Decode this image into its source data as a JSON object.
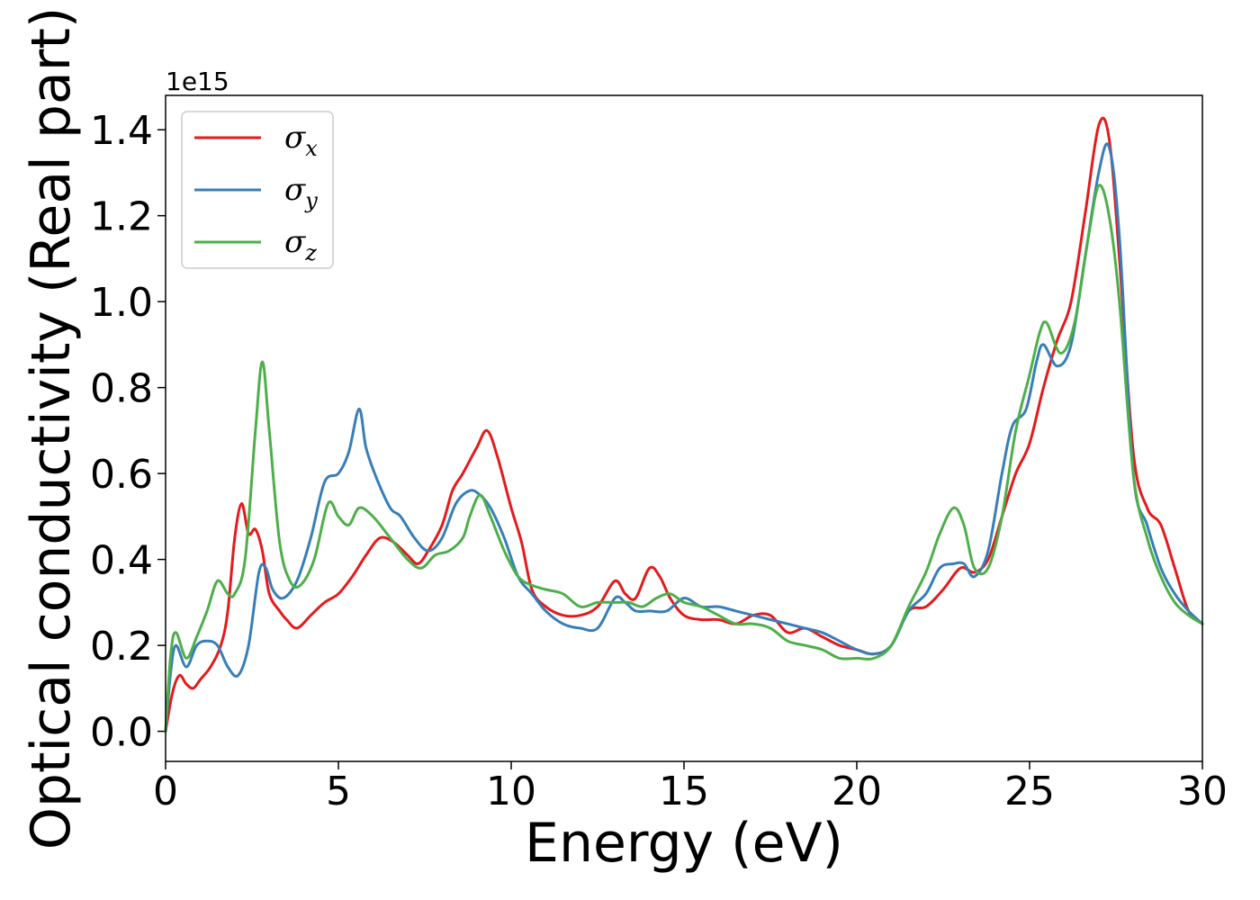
{
  "chart_data": {
    "type": "line",
    "xlabel": "Energy (eV)",
    "ylabel": "Optical conductivity (Real part)",
    "y_offset_text": "1e15",
    "xlim": [
      0,
      30
    ],
    "ylim": [
      -0.07,
      1.48
    ],
    "x_ticks": [
      0,
      5,
      10,
      15,
      20,
      25,
      30
    ],
    "x_tick_labels": [
      "0",
      "5",
      "10",
      "15",
      "20",
      "25",
      "30"
    ],
    "y_ticks": [
      0.0,
      0.2,
      0.4,
      0.6,
      0.8,
      1.0,
      1.2,
      1.4
    ],
    "y_tick_labels": [
      "0.0",
      "0.2",
      "0.4",
      "0.6",
      "0.8",
      "1.0",
      "1.2",
      "1.4"
    ],
    "grid": false,
    "legend_position": "top-left",
    "series": [
      {
        "name": "σx",
        "name_base": "σ",
        "name_sub": "x",
        "color": "#e41a1c",
        "points": [
          [
            0,
            0
          ],
          [
            0.2,
            0.09
          ],
          [
            0.4,
            0.13
          ],
          [
            0.6,
            0.11
          ],
          [
            0.8,
            0.1
          ],
          [
            1,
            0.12
          ],
          [
            1.3,
            0.15
          ],
          [
            1.6,
            0.2
          ],
          [
            1.8,
            0.28
          ],
          [
            2.0,
            0.45
          ],
          [
            2.2,
            0.53
          ],
          [
            2.4,
            0.46
          ],
          [
            2.6,
            0.47
          ],
          [
            2.8,
            0.42
          ],
          [
            3.0,
            0.32
          ],
          [
            3.3,
            0.28
          ],
          [
            3.5,
            0.26
          ],
          [
            3.8,
            0.24
          ],
          [
            4.2,
            0.27
          ],
          [
            4.6,
            0.3
          ],
          [
            5.0,
            0.32
          ],
          [
            5.4,
            0.36
          ],
          [
            5.8,
            0.41
          ],
          [
            6.2,
            0.45
          ],
          [
            6.6,
            0.44
          ],
          [
            7.0,
            0.41
          ],
          [
            7.3,
            0.39
          ],
          [
            7.6,
            0.42
          ],
          [
            8.0,
            0.48
          ],
          [
            8.3,
            0.56
          ],
          [
            8.6,
            0.6
          ],
          [
            9.0,
            0.66
          ],
          [
            9.3,
            0.7
          ],
          [
            9.6,
            0.64
          ],
          [
            10.0,
            0.52
          ],
          [
            10.3,
            0.44
          ],
          [
            10.6,
            0.33
          ],
          [
            11.0,
            0.29
          ],
          [
            11.5,
            0.27
          ],
          [
            12.0,
            0.27
          ],
          [
            12.5,
            0.29
          ],
          [
            13.0,
            0.35
          ],
          [
            13.3,
            0.32
          ],
          [
            13.6,
            0.31
          ],
          [
            14.0,
            0.38
          ],
          [
            14.3,
            0.36
          ],
          [
            14.6,
            0.31
          ],
          [
            15.0,
            0.27
          ],
          [
            15.5,
            0.26
          ],
          [
            16.0,
            0.26
          ],
          [
            16.5,
            0.25
          ],
          [
            17.0,
            0.27
          ],
          [
            17.5,
            0.27
          ],
          [
            18.0,
            0.23
          ],
          [
            18.5,
            0.24
          ],
          [
            19.0,
            0.22
          ],
          [
            19.5,
            0.2
          ],
          [
            20.0,
            0.19
          ],
          [
            20.5,
            0.18
          ],
          [
            21.0,
            0.2
          ],
          [
            21.5,
            0.28
          ],
          [
            22.0,
            0.29
          ],
          [
            22.5,
            0.33
          ],
          [
            23.0,
            0.38
          ],
          [
            23.4,
            0.37
          ],
          [
            23.8,
            0.4
          ],
          [
            24.2,
            0.5
          ],
          [
            24.6,
            0.6
          ],
          [
            25.0,
            0.67
          ],
          [
            25.4,
            0.8
          ],
          [
            25.8,
            0.91
          ],
          [
            26.2,
            1.0
          ],
          [
            26.6,
            1.2
          ],
          [
            27.0,
            1.41
          ],
          [
            27.3,
            1.38
          ],
          [
            27.6,
            1.1
          ],
          [
            28.0,
            0.65
          ],
          [
            28.4,
            0.52
          ],
          [
            28.8,
            0.48
          ],
          [
            29.2,
            0.38
          ],
          [
            29.6,
            0.28
          ],
          [
            30.0,
            0.25
          ]
        ]
      },
      {
        "name": "σy",
        "name_base": "σ",
        "name_sub": "y",
        "color": "#377eb8",
        "points": [
          [
            0,
            0
          ],
          [
            0.15,
            0.14
          ],
          [
            0.3,
            0.2
          ],
          [
            0.6,
            0.15
          ],
          [
            0.9,
            0.2
          ],
          [
            1.2,
            0.21
          ],
          [
            1.5,
            0.2
          ],
          [
            1.8,
            0.15
          ],
          [
            2.1,
            0.13
          ],
          [
            2.4,
            0.2
          ],
          [
            2.7,
            0.37
          ],
          [
            2.9,
            0.38
          ],
          [
            3.1,
            0.33
          ],
          [
            3.4,
            0.31
          ],
          [
            3.8,
            0.35
          ],
          [
            4.2,
            0.45
          ],
          [
            4.6,
            0.58
          ],
          [
            5.0,
            0.6
          ],
          [
            5.3,
            0.65
          ],
          [
            5.6,
            0.75
          ],
          [
            5.8,
            0.66
          ],
          [
            6.1,
            0.59
          ],
          [
            6.5,
            0.52
          ],
          [
            6.8,
            0.5
          ],
          [
            7.2,
            0.45
          ],
          [
            7.6,
            0.42
          ],
          [
            8.0,
            0.45
          ],
          [
            8.4,
            0.53
          ],
          [
            8.8,
            0.56
          ],
          [
            9.1,
            0.55
          ],
          [
            9.4,
            0.52
          ],
          [
            9.8,
            0.45
          ],
          [
            10.2,
            0.36
          ],
          [
            10.6,
            0.32
          ],
          [
            11.0,
            0.28
          ],
          [
            11.5,
            0.25
          ],
          [
            12.0,
            0.24
          ],
          [
            12.5,
            0.24
          ],
          [
            13.0,
            0.31
          ],
          [
            13.3,
            0.3
          ],
          [
            13.6,
            0.28
          ],
          [
            14.0,
            0.28
          ],
          [
            14.5,
            0.28
          ],
          [
            15.0,
            0.31
          ],
          [
            15.5,
            0.29
          ],
          [
            16.0,
            0.29
          ],
          [
            16.5,
            0.28
          ],
          [
            17.0,
            0.27
          ],
          [
            17.5,
            0.26
          ],
          [
            18.0,
            0.25
          ],
          [
            18.5,
            0.24
          ],
          [
            19.0,
            0.23
          ],
          [
            19.5,
            0.21
          ],
          [
            20.0,
            0.19
          ],
          [
            20.5,
            0.18
          ],
          [
            21.0,
            0.2
          ],
          [
            21.5,
            0.28
          ],
          [
            22.0,
            0.32
          ],
          [
            22.4,
            0.38
          ],
          [
            22.8,
            0.39
          ],
          [
            23.1,
            0.39
          ],
          [
            23.4,
            0.36
          ],
          [
            23.8,
            0.42
          ],
          [
            24.2,
            0.6
          ],
          [
            24.5,
            0.71
          ],
          [
            24.9,
            0.75
          ],
          [
            25.2,
            0.86
          ],
          [
            25.4,
            0.9
          ],
          [
            25.8,
            0.85
          ],
          [
            26.2,
            0.9
          ],
          [
            26.6,
            1.1
          ],
          [
            27.0,
            1.3
          ],
          [
            27.3,
            1.36
          ],
          [
            27.6,
            1.15
          ],
          [
            28.0,
            0.6
          ],
          [
            28.4,
            0.48
          ],
          [
            28.8,
            0.38
          ],
          [
            29.2,
            0.32
          ],
          [
            29.6,
            0.28
          ],
          [
            30.0,
            0.25
          ]
        ]
      },
      {
        "name": "σz",
        "name_base": "σ",
        "name_sub": "z",
        "color": "#4daf4a",
        "points": [
          [
            0,
            0
          ],
          [
            0.15,
            0.18
          ],
          [
            0.3,
            0.23
          ],
          [
            0.6,
            0.17
          ],
          [
            0.9,
            0.22
          ],
          [
            1.2,
            0.28
          ],
          [
            1.5,
            0.35
          ],
          [
            1.8,
            0.32
          ],
          [
            2.0,
            0.32
          ],
          [
            2.3,
            0.4
          ],
          [
            2.6,
            0.7
          ],
          [
            2.8,
            0.86
          ],
          [
            3.0,
            0.7
          ],
          [
            3.3,
            0.44
          ],
          [
            3.6,
            0.35
          ],
          [
            3.9,
            0.34
          ],
          [
            4.3,
            0.4
          ],
          [
            4.7,
            0.53
          ],
          [
            5.0,
            0.5
          ],
          [
            5.3,
            0.48
          ],
          [
            5.6,
            0.52
          ],
          [
            6.0,
            0.5
          ],
          [
            6.5,
            0.45
          ],
          [
            7.0,
            0.4
          ],
          [
            7.4,
            0.38
          ],
          [
            7.8,
            0.41
          ],
          [
            8.2,
            0.42
          ],
          [
            8.6,
            0.45
          ],
          [
            8.8,
            0.5
          ],
          [
            9.1,
            0.55
          ],
          [
            9.4,
            0.5
          ],
          [
            9.8,
            0.42
          ],
          [
            10.2,
            0.36
          ],
          [
            10.6,
            0.34
          ],
          [
            11.0,
            0.33
          ],
          [
            11.5,
            0.32
          ],
          [
            12.0,
            0.29
          ],
          [
            12.5,
            0.3
          ],
          [
            13.0,
            0.3
          ],
          [
            13.4,
            0.3
          ],
          [
            13.8,
            0.29
          ],
          [
            14.2,
            0.31
          ],
          [
            14.6,
            0.32
          ],
          [
            15.0,
            0.3
          ],
          [
            15.5,
            0.29
          ],
          [
            16.0,
            0.27
          ],
          [
            16.5,
            0.25
          ],
          [
            17.0,
            0.25
          ],
          [
            17.5,
            0.24
          ],
          [
            18.0,
            0.21
          ],
          [
            18.5,
            0.2
          ],
          [
            19.0,
            0.19
          ],
          [
            19.5,
            0.17
          ],
          [
            20.0,
            0.17
          ],
          [
            20.5,
            0.17
          ],
          [
            21.0,
            0.2
          ],
          [
            21.5,
            0.29
          ],
          [
            22.0,
            0.37
          ],
          [
            22.4,
            0.46
          ],
          [
            22.8,
            0.52
          ],
          [
            23.1,
            0.48
          ],
          [
            23.4,
            0.38
          ],
          [
            23.8,
            0.38
          ],
          [
            24.2,
            0.5
          ],
          [
            24.6,
            0.7
          ],
          [
            25.0,
            0.83
          ],
          [
            25.3,
            0.93
          ],
          [
            25.5,
            0.95
          ],
          [
            25.9,
            0.88
          ],
          [
            26.3,
            0.95
          ],
          [
            26.7,
            1.15
          ],
          [
            27.0,
            1.27
          ],
          [
            27.3,
            1.2
          ],
          [
            27.6,
            1.0
          ],
          [
            28.0,
            0.6
          ],
          [
            28.4,
            0.45
          ],
          [
            28.8,
            0.36
          ],
          [
            29.2,
            0.3
          ],
          [
            29.6,
            0.27
          ],
          [
            30.0,
            0.25
          ]
        ]
      }
    ]
  }
}
